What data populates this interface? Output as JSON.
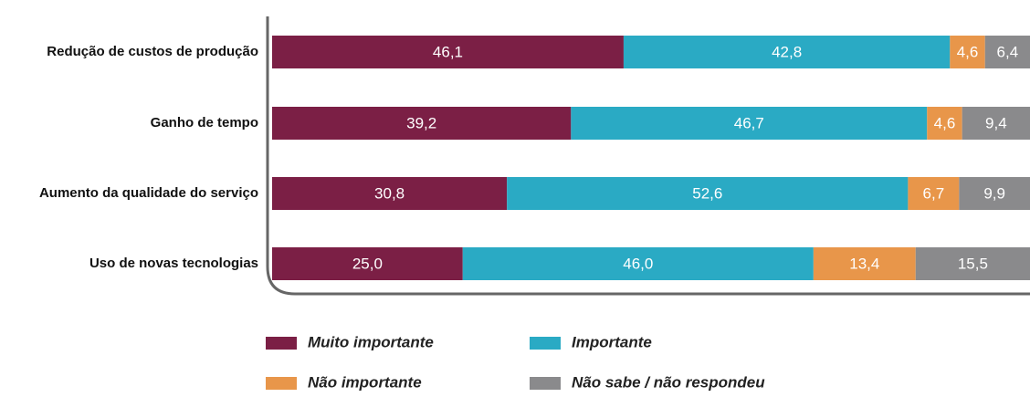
{
  "chart_data": {
    "type": "stacked_bar_horizontal",
    "categories": [
      "Redução de custos de produção",
      "Ganho de tempo",
      "Aumento da qualidade do serviço",
      "Uso de novas tecnologias"
    ],
    "xlim": [
      0,
      100
    ],
    "series": [
      {
        "name": "Muito importante",
        "color": "#7b1f45",
        "values": [
          46.1,
          39.2,
          30.8,
          25.0
        ],
        "value_labels": [
          "46,1",
          "39,2",
          "30,8",
          "25,0"
        ]
      },
      {
        "name": "Importante",
        "color": "#2aaac4",
        "values": [
          42.8,
          46.7,
          52.6,
          46.0
        ],
        "value_labels": [
          "42,8",
          "46,7",
          "52,6",
          "46,0"
        ]
      },
      {
        "name": "Não importante",
        "color": "#e8964a",
        "values": [
          4.6,
          4.6,
          6.7,
          13.4
        ],
        "value_labels": [
          "4,6",
          "4,6",
          "6,7",
          "13,4"
        ]
      },
      {
        "name": "Não sabe / não respondeu",
        "color": "#8a8a8c",
        "values": [
          6.4,
          9.4,
          9.9,
          15.5
        ],
        "value_labels": [
          "6,4",
          "9,4",
          "9,9",
          "15,5"
        ]
      }
    ]
  }
}
